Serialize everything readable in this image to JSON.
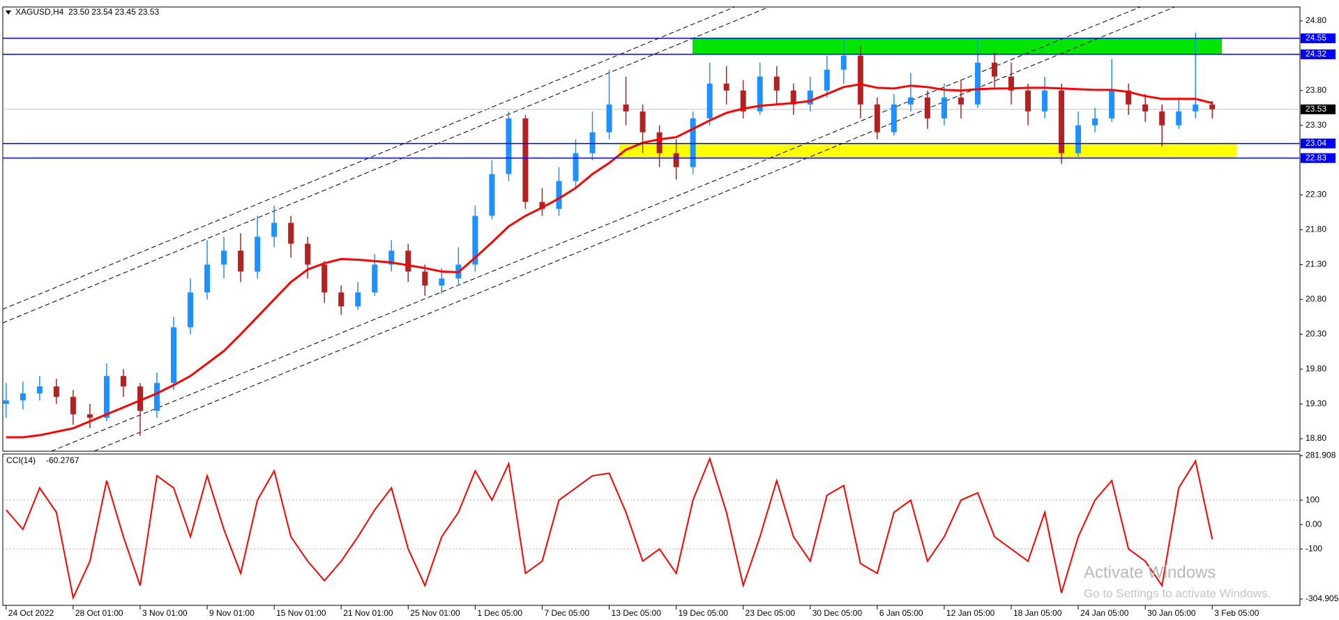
{
  "chart_data": [
    {
      "type": "candlestick",
      "symbol": "XAGUSD,H4",
      "quote": "23.50 23.54 23.45 23.53",
      "categories": [
        "24 Oct 2022",
        null,
        null,
        null,
        "28 Oct 01:00",
        null,
        null,
        null,
        "3 Nov 01:00",
        null,
        null,
        null,
        "9 Nov 01:00",
        null,
        null,
        null,
        "15 Nov 01:00",
        null,
        null,
        null,
        "21 Nov 01:00",
        null,
        null,
        null,
        "25 Nov 01:00",
        null,
        null,
        null,
        "1 Dec 05:00",
        null,
        null,
        null,
        "7 Dec 05:00",
        null,
        null,
        null,
        "13 Dec 05:00",
        null,
        null,
        null,
        "19 Dec 05:00",
        null,
        null,
        null,
        "23 Dec 05:00",
        null,
        null,
        null,
        "30 Dec 05:00",
        null,
        null,
        null,
        "6 Jan 05:00",
        null,
        null,
        null,
        "12 Jan 05:00",
        null,
        null,
        null,
        "18 Jan 05:00",
        null,
        null,
        null,
        "24 Jan 05:00",
        null,
        null,
        null,
        "30 Jan 05:00",
        null,
        null,
        null,
        "3 Feb 05:00"
      ],
      "ohlc": [
        [
          19.3,
          19.6,
          19.1,
          19.35
        ],
        [
          19.35,
          19.62,
          19.22,
          19.45
        ],
        [
          19.45,
          19.7,
          19.35,
          19.55
        ],
        [
          19.55,
          19.66,
          19.3,
          19.4
        ],
        [
          19.4,
          19.5,
          19.0,
          19.15
        ],
        [
          19.15,
          19.3,
          18.95,
          19.1
        ],
        [
          19.1,
          19.88,
          19.05,
          19.7
        ],
        [
          19.7,
          19.8,
          19.4,
          19.55
        ],
        [
          19.55,
          19.6,
          18.84,
          19.2
        ],
        [
          19.2,
          19.75,
          19.1,
          19.6
        ],
        [
          19.6,
          20.55,
          19.5,
          20.4
        ],
        [
          20.4,
          21.1,
          20.3,
          20.9
        ],
        [
          20.9,
          21.65,
          20.8,
          21.3
        ],
        [
          21.3,
          21.7,
          21.1,
          21.5
        ],
        [
          21.5,
          21.75,
          21.05,
          21.2
        ],
        [
          21.2,
          22.0,
          21.1,
          21.7
        ],
        [
          21.7,
          22.15,
          21.55,
          21.9
        ],
        [
          21.9,
          22.0,
          21.4,
          21.6
        ],
        [
          21.6,
          21.7,
          21.1,
          21.3
        ],
        [
          21.3,
          21.35,
          20.75,
          20.9
        ],
        [
          20.9,
          21.0,
          20.58,
          20.7
        ],
        [
          20.7,
          21.05,
          20.65,
          20.9
        ],
        [
          20.9,
          21.45,
          20.85,
          21.3
        ],
        [
          21.3,
          21.65,
          21.2,
          21.5
        ],
        [
          21.5,
          21.6,
          21.05,
          21.2
        ],
        [
          21.2,
          21.3,
          20.85,
          21.0
        ],
        [
          21.0,
          21.25,
          20.88,
          21.1
        ],
        [
          21.1,
          21.55,
          21.0,
          21.3
        ],
        [
          21.3,
          22.15,
          21.2,
          22.0
        ],
        [
          22.0,
          22.8,
          21.95,
          22.6
        ],
        [
          22.6,
          23.5,
          22.5,
          23.4
        ],
        [
          23.4,
          23.45,
          22.1,
          22.2
        ],
        [
          22.2,
          22.4,
          22.0,
          22.1
        ],
        [
          22.1,
          22.7,
          22.0,
          22.5
        ],
        [
          22.5,
          23.1,
          22.4,
          22.9
        ],
        [
          22.9,
          23.5,
          22.8,
          23.2
        ],
        [
          23.2,
          24.1,
          23.1,
          23.6
        ],
        [
          23.6,
          24.0,
          23.3,
          23.5
        ],
        [
          23.5,
          23.6,
          22.9,
          23.2
        ],
        [
          23.2,
          23.3,
          22.7,
          22.9
        ],
        [
          22.9,
          23.1,
          22.52,
          22.7
        ],
        [
          22.7,
          23.5,
          22.6,
          23.4
        ],
        [
          23.4,
          24.2,
          23.3,
          23.9
        ],
        [
          23.9,
          24.15,
          23.6,
          23.8
        ],
        [
          23.8,
          23.95,
          23.4,
          23.5
        ],
        [
          23.5,
          24.2,
          23.45,
          24.0
        ],
        [
          24.0,
          24.15,
          23.6,
          23.8
        ],
        [
          23.8,
          23.9,
          23.45,
          23.6
        ],
        [
          23.6,
          24.0,
          23.5,
          23.8
        ],
        [
          23.8,
          24.3,
          23.7,
          24.1
        ],
        [
          24.1,
          24.55,
          23.9,
          24.3
        ],
        [
          24.3,
          24.45,
          23.4,
          23.6
        ],
        [
          23.6,
          23.7,
          23.1,
          23.2
        ],
        [
          23.2,
          23.75,
          23.15,
          23.6
        ],
        [
          23.6,
          24.05,
          23.5,
          23.7
        ],
        [
          23.7,
          23.8,
          23.25,
          23.4
        ],
        [
          23.4,
          23.9,
          23.3,
          23.7
        ],
        [
          23.7,
          23.95,
          23.4,
          23.6
        ],
        [
          23.6,
          24.55,
          23.55,
          24.2
        ],
        [
          24.2,
          24.35,
          23.85,
          24.0
        ],
        [
          24.0,
          24.2,
          23.6,
          23.8
        ],
        [
          23.8,
          23.9,
          23.3,
          23.5
        ],
        [
          23.5,
          24.0,
          23.4,
          23.8
        ],
        [
          23.8,
          23.9,
          22.75,
          22.9
        ],
        [
          22.9,
          23.5,
          22.85,
          23.3
        ],
        [
          23.3,
          23.55,
          23.2,
          23.4
        ],
        [
          23.4,
          24.25,
          23.35,
          23.8
        ],
        [
          23.8,
          23.9,
          23.45,
          23.6
        ],
        [
          23.6,
          23.75,
          23.35,
          23.5
        ],
        [
          23.5,
          23.6,
          23.0,
          23.3
        ],
        [
          23.3,
          23.7,
          23.25,
          23.5
        ],
        [
          23.5,
          24.63,
          23.4,
          23.6
        ],
        [
          23.6,
          23.65,
          23.4,
          23.53
        ]
      ],
      "up_color": "#1e90ff",
      "down_color": "#b22222",
      "moving_average": {
        "color": "#ff0000",
        "values": [
          18.82,
          18.82,
          18.85,
          18.9,
          18.95,
          19.05,
          19.15,
          19.25,
          19.35,
          19.45,
          19.57,
          19.7,
          19.88,
          20.06,
          20.3,
          20.55,
          20.8,
          21.05,
          21.23,
          21.32,
          21.38,
          21.37,
          21.35,
          21.33,
          21.29,
          21.25,
          21.2,
          21.19,
          21.4,
          21.62,
          21.85,
          22.0,
          22.12,
          22.25,
          22.4,
          22.6,
          22.76,
          22.95,
          23.05,
          23.1,
          23.13,
          23.25,
          23.37,
          23.48,
          23.54,
          23.58,
          23.6,
          23.62,
          23.65,
          23.75,
          23.85,
          23.89,
          23.84,
          23.83,
          23.87,
          23.85,
          23.81,
          23.8,
          23.82,
          23.83,
          23.83,
          23.84,
          23.84,
          23.83,
          23.82,
          23.81,
          23.81,
          23.78,
          23.72,
          23.68,
          23.68,
          23.68,
          23.62
        ]
      },
      "ylim": [
        18.62,
        25.0
      ],
      "yticks": [
        {
          "value": 24.8,
          "label": "24.80"
        },
        {
          "value": 23.8,
          "label": "23.80"
        },
        {
          "value": 23.3,
          "label": "23.30"
        },
        {
          "value": 22.3,
          "label": "22.30"
        },
        {
          "value": 21.8,
          "label": "21.80"
        },
        {
          "value": 21.3,
          "label": "21.30"
        },
        {
          "value": 20.8,
          "label": "20.80"
        },
        {
          "value": 20.3,
          "label": "20.30"
        },
        {
          "value": 19.8,
          "label": "19.80"
        },
        {
          "value": 19.3,
          "label": "19.30"
        },
        {
          "value": 18.8,
          "label": "18.80"
        }
      ],
      "levels": [
        {
          "value": 24.55,
          "label": "24.55"
        },
        {
          "value": 24.32,
          "label": "24.32"
        },
        {
          "value": 23.04,
          "label": "23.04"
        },
        {
          "value": 22.83,
          "label": "22.83"
        }
      ],
      "level_color": "#0000ff",
      "last_price": {
        "value": 23.53,
        "label": "23.53"
      },
      "zones": [
        {
          "color": "#00e600"
        },
        {
          "color": "#ffff00"
        }
      ],
      "grid": false
    },
    {
      "type": "line",
      "title": "CCI(14)",
      "series": [
        {
          "color": "#ff0000",
          "values": [
            60,
            -20,
            150,
            50,
            -300,
            -150,
            180,
            -50,
            -250,
            200,
            150,
            -50,
            200,
            -20,
            -200,
            100,
            220,
            -50,
            -150,
            -230,
            -150,
            -50,
            60,
            150,
            -100,
            -250,
            -50,
            50,
            220,
            100,
            250,
            -200,
            -150,
            100,
            150,
            200,
            210,
            50,
            -150,
            -100,
            -200,
            100,
            270,
            50,
            -250,
            -50,
            180,
            -50,
            -150,
            120,
            160,
            -160,
            -200,
            50,
            100,
            -150,
            -50,
            100,
            130,
            -50,
            -100,
            -150,
            50,
            -280,
            -50,
            100,
            180,
            -100,
            -150,
            -250,
            150,
            260,
            -60.2767
          ]
        }
      ],
      "ylim": [
        -331,
        289
      ],
      "yticks": [
        281.908,
        100,
        {
          "value": 0,
          "label": "0.00"
        },
        -100,
        -304.905
      ],
      "dotted_levels": [
        100,
        -100
      ],
      "grid": false
    }
  ],
  "watermark": {
    "title": "Activate Windows",
    "subtitle": "Go to Settings to activate Windows."
  }
}
